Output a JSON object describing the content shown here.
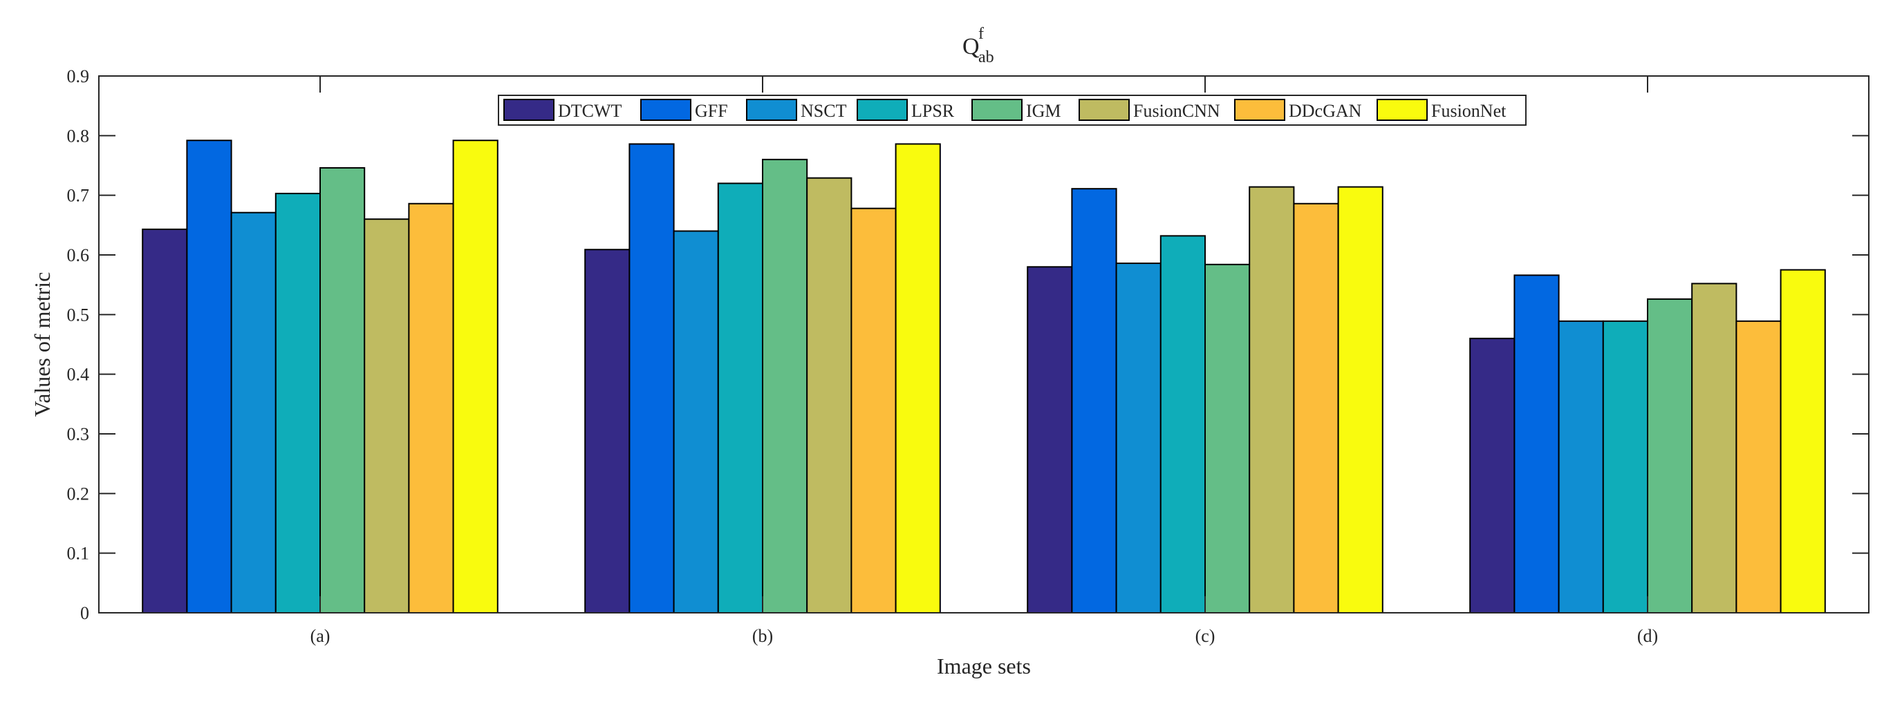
{
  "chart_data": {
    "type": "bar",
    "title": {
      "base": "Q",
      "sup": "f",
      "sub": "ab"
    },
    "xlabel": "Image sets",
    "ylabel": "Values of metric",
    "ylim": [
      0,
      0.9
    ],
    "yticks": [
      "0",
      "0.1",
      "0.2",
      "0.3",
      "0.4",
      "0.5",
      "0.6",
      "0.7",
      "0.8",
      "0.9"
    ],
    "grid": false,
    "legend_position": "top-center",
    "categories": [
      "(a)",
      "(b)",
      "(c)",
      "(d)"
    ],
    "series": [
      {
        "name": "DTCWT",
        "color": "#352a87",
        "values": [
          0.643,
          0.609,
          0.58,
          0.46
        ]
      },
      {
        "name": "GFF",
        "color": "#0268e1",
        "values": [
          0.792,
          0.786,
          0.711,
          0.566
        ]
      },
      {
        "name": "NSCT",
        "color": "#108ed2",
        "values": [
          0.671,
          0.64,
          0.586,
          0.489
        ]
      },
      {
        "name": "LPSR",
        "color": "#0fadb9",
        "values": [
          0.703,
          0.72,
          0.632,
          0.489
        ]
      },
      {
        "name": "IGM",
        "color": "#64be87",
        "values": [
          0.746,
          0.76,
          0.584,
          0.526
        ]
      },
      {
        "name": "FusionCNN",
        "color": "#bfbb61",
        "values": [
          0.66,
          0.729,
          0.714,
          0.552
        ]
      },
      {
        "name": "DDcGAN",
        "color": "#fcbd3b",
        "values": [
          0.686,
          0.678,
          0.686,
          0.489
        ]
      },
      {
        "name": "FusionNet",
        "color": "#f9fb0e",
        "values": [
          0.792,
          0.786,
          0.714,
          0.575
        ]
      }
    ]
  }
}
